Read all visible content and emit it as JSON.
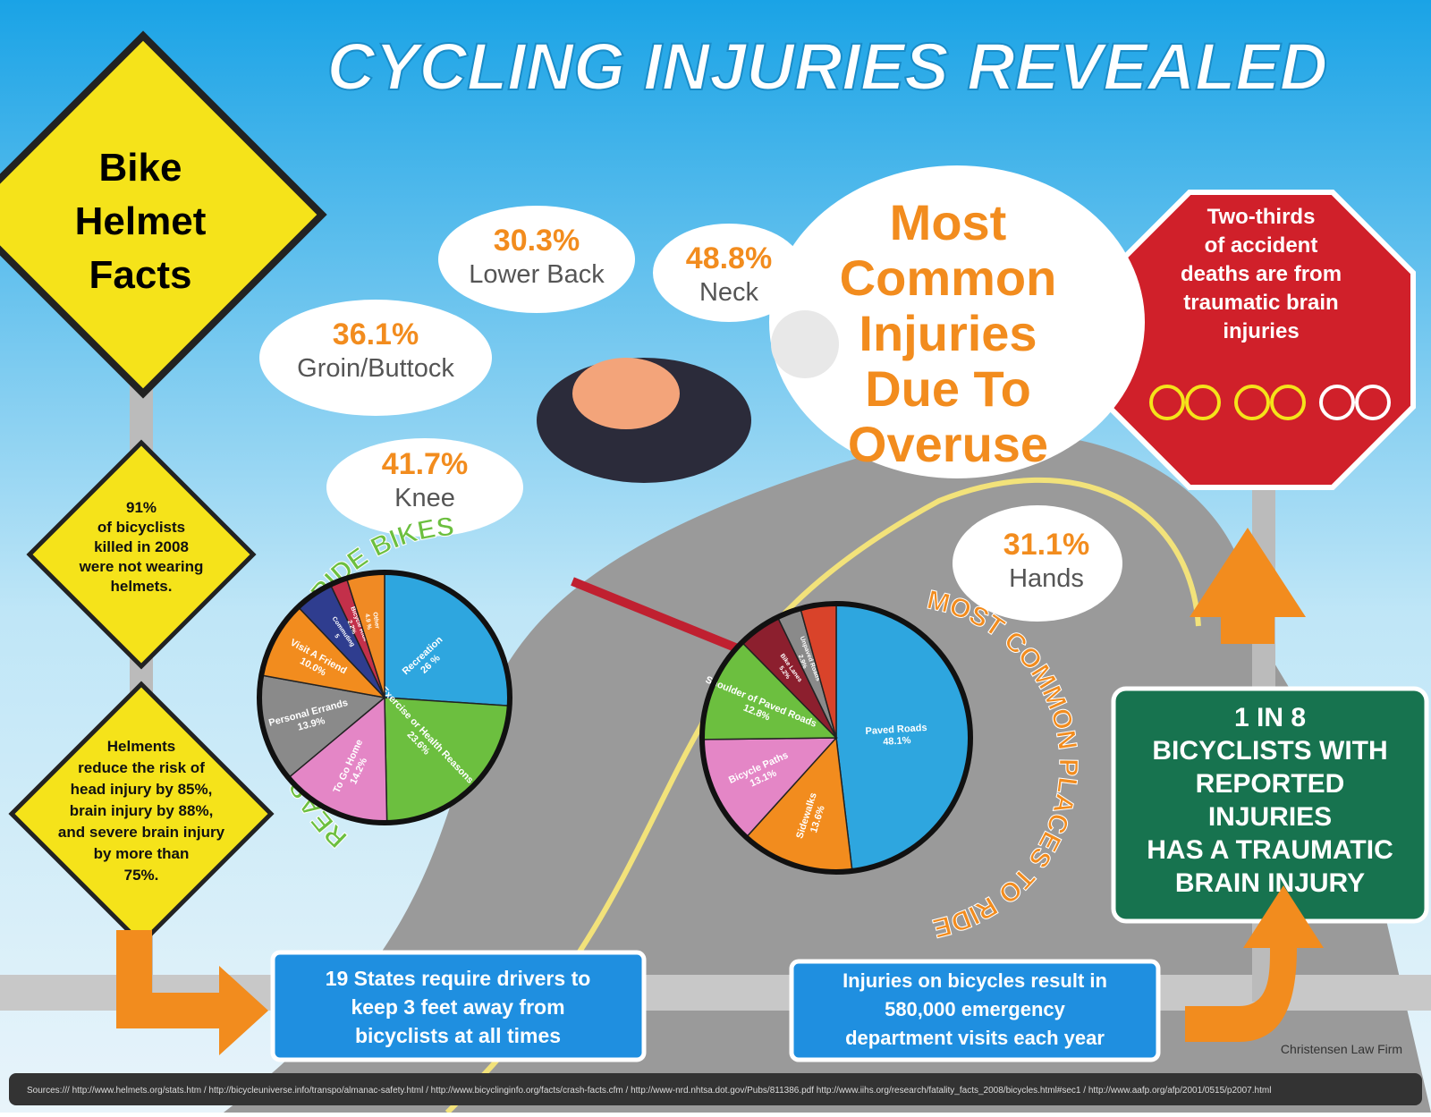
{
  "header": {
    "title": "CYCLING INJURIES REVEALED"
  },
  "helmet_sign": {
    "title": [
      "Bike",
      "Helmet",
      "Facts"
    ]
  },
  "facts": [
    {
      "lines": [
        "91%",
        "of bicyclists",
        "killed in 2008",
        "were not wearing",
        "helmets."
      ]
    },
    {
      "lines": [
        "Helments",
        "reduce the risk of",
        "head injury by 85%,",
        "brain injury by 88%,",
        "and severe brain injury",
        "by more than",
        "75%."
      ]
    }
  ],
  "injuries": {
    "title": [
      "Most",
      "Common",
      "Injuries",
      "Due To",
      "Overuse"
    ],
    "items": [
      {
        "percent": "30.3%",
        "label": "Lower Back"
      },
      {
        "percent": "48.8%",
        "label": "Neck"
      },
      {
        "percent": "36.1%",
        "label": "Groin/Buttock"
      },
      {
        "percent": "41.7%",
        "label": "Knee"
      },
      {
        "percent": "31.1%",
        "label": "Hands"
      }
    ]
  },
  "stop_sign": {
    "lines": [
      "Two-thirds",
      "of accident",
      "deaths are from",
      "traumatic brain",
      "injuries"
    ]
  },
  "green_sign": {
    "lines": [
      "1 IN 8",
      "BICYCLISTS WITH",
      "REPORTED",
      "INJURIES",
      "HAS A TRAUMATIC",
      "BRAIN INJURY"
    ]
  },
  "boxes": [
    {
      "lines": [
        "19 States require drivers to",
        "keep 3 feet away from",
        "bicyclists at all times"
      ]
    },
    {
      "lines": [
        "Injuries on bicycles result in",
        "580,000 emergency",
        "department visits each year"
      ]
    }
  ],
  "footer": {
    "firm": "Christensen Law Firm",
    "sources": "Sources:/// http://www.helmets.org/stats.htm  /  http://bicycleuniverse.info/transpo/almanac-safety.html  /  http://www.bicyclinginfo.org/facts/crash-facts.cfm  /  http://www-nrd.nhtsa.dot.gov/Pubs/811386.pdf  http://www.iihs.org/research/fatality_facts_2008/bicycles.html#sec1  /  http://www.aafp.org/afp/2001/0515/p2007.html"
  },
  "chart_data": [
    {
      "type": "pie",
      "title": "REASONS PEOPLE RIDE BIKES",
      "categories": [
        "Recreation",
        "Exercise or Health Reasons",
        "To Go Home",
        "Personal Errands",
        "Visit A Friend",
        "Commuting",
        "Bicycle Ride",
        "Other"
      ],
      "values": [
        26,
        23.6,
        14.2,
        13.9,
        10.0,
        5,
        2.2,
        4.9
      ],
      "value_labels": [
        "26 %",
        "23.6%",
        "14.2%",
        "13.9%",
        "10.0%",
        "5",
        "2.2%",
        "4.9 %"
      ],
      "colors": [
        "#2ea6df",
        "#6cbf3f",
        "#e486c6",
        "#8a8a8a",
        "#f28c1e",
        "#2f3d8f",
        "#c3304a",
        "#f08a24"
      ]
    },
    {
      "type": "pie",
      "title": "MOST COMMON PLACES TO RIDE",
      "categories": [
        "Paved Roads",
        "Sidewalks",
        "Bicycle Paths",
        "Shoulder of Paved Roads",
        "Bike Lanes",
        "Unpaved Roads",
        null
      ],
      "values": [
        48.1,
        13.6,
        13.1,
        12.8,
        5.2,
        2.9,
        4.3
      ],
      "value_labels": [
        "48.1%",
        "13.6%",
        "13.1%",
        "12.8%",
        "5.2%",
        "2.9%",
        null
      ],
      "colors": [
        "#2ea6df",
        "#f28c1e",
        "#e486c6",
        "#6cbf3f",
        "#8c1f2e",
        "#8a8a8a",
        "#d9432a"
      ]
    }
  ]
}
